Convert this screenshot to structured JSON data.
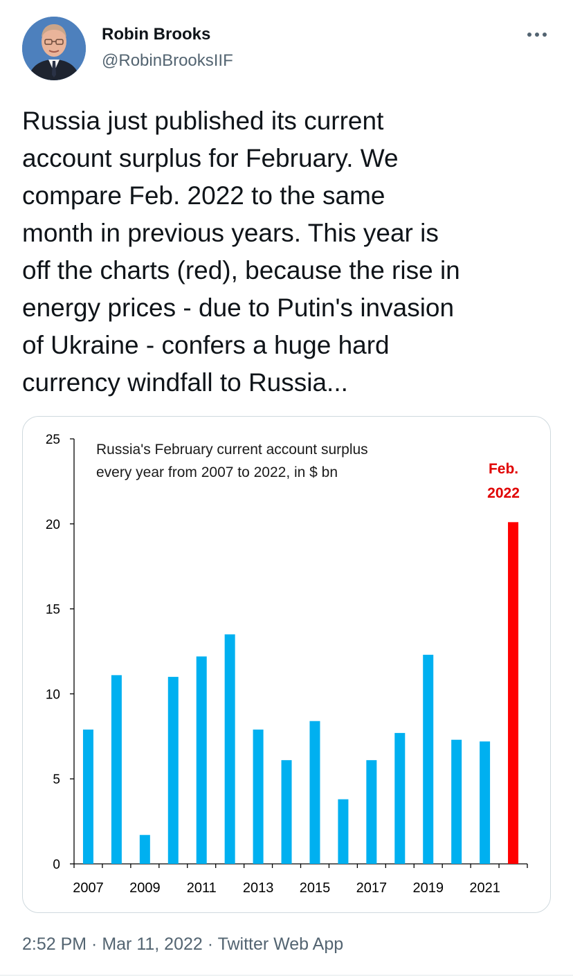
{
  "author": {
    "name": "Robin Brooks",
    "handle": "@RobinBrooksIIF"
  },
  "icons": {
    "more": "more-horizontal-icon",
    "avatar": "avatar-photo"
  },
  "tweet": {
    "text": "Russia just published its current\naccount surplus for February. We\ncompare Feb. 2022 to the same\nmonth in previous years. This year is\noff the charts (red), because the rise in\nenergy prices - due to Putin's invasion\nof Ukraine - confers a huge hard\ncurrency windfall to Russia..."
  },
  "meta": {
    "time": "2:52 PM",
    "sep1": " · ",
    "date": "Mar 11, 2022",
    "sep2": " · ",
    "app": "Twitter Web App"
  },
  "chart_data": {
    "type": "bar",
    "title_lines": [
      "Russia's February current account surplus",
      "every year from 2007 to 2022,  in $ bn"
    ],
    "annotation_lines": [
      "Feb.",
      "2022"
    ],
    "categories": [
      "2007",
      "2008",
      "2009",
      "2010",
      "2011",
      "2012",
      "2013",
      "2014",
      "2015",
      "2016",
      "2017",
      "2018",
      "2019",
      "2020",
      "2021",
      "2022"
    ],
    "values": [
      7.9,
      11.1,
      1.7,
      11.0,
      12.2,
      13.5,
      7.9,
      6.1,
      8.4,
      3.8,
      6.1,
      7.7,
      12.3,
      7.3,
      7.2,
      20.1
    ],
    "x_tick_labels": [
      "2007",
      "2009",
      "2011",
      "2013",
      "2015",
      "2017",
      "2019",
      "2021"
    ],
    "y_ticks": [
      0,
      5,
      10,
      15,
      20,
      25
    ],
    "ylim": [
      0,
      25
    ],
    "grid": false,
    "colors": {
      "default": "#00b0f0",
      "highlight": "#ff0000",
      "annotation": "#e00000"
    },
    "highlight_index": 15
  }
}
